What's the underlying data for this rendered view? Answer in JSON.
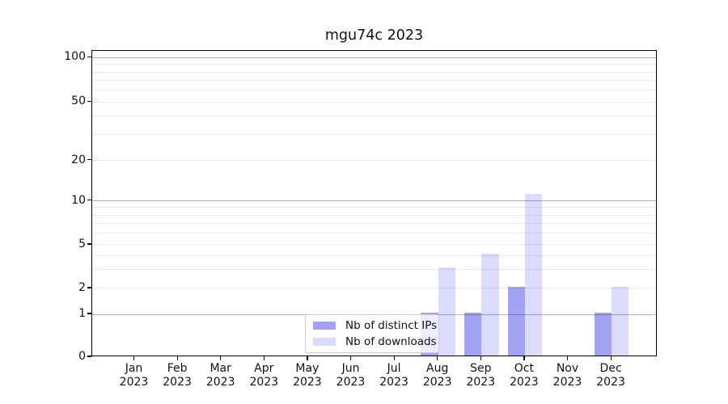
{
  "chart_data": {
    "type": "bar",
    "title": "mgu74c 2023",
    "categories": [
      "Jan 2023",
      "Feb 2023",
      "Mar 2023",
      "Apr 2023",
      "May 2023",
      "Jun 2023",
      "Jul 2023",
      "Aug 2023",
      "Sep 2023",
      "Oct 2023",
      "Nov 2023",
      "Dec 2023"
    ],
    "series": [
      {
        "name": "Nb of distinct IPs",
        "color": "#0000e1",
        "alpha": 0.36,
        "values": [
          0,
          0,
          0,
          0,
          0,
          0,
          0,
          1,
          1,
          2,
          0,
          1
        ]
      },
      {
        "name": "Nb of downloads",
        "color": "#0000e1",
        "alpha": 0.14,
        "values": [
          0,
          0,
          0,
          0,
          0,
          0,
          0,
          3,
          4,
          11,
          0,
          2
        ]
      }
    ],
    "yscale": "symlog",
    "ylim": [
      0,
      110
    ],
    "yticks_labeled": [
      0,
      1,
      2,
      5,
      10,
      20,
      50,
      100
    ],
    "grid_major_values": [
      1,
      10,
      100
    ],
    "grid_minor_values": [
      2,
      3,
      4,
      5,
      6,
      7,
      8,
      9,
      20,
      30,
      40,
      50,
      60,
      70,
      80,
      90
    ],
    "legend": {
      "position": "lower-center",
      "entries": [
        "Nb of distinct IPs",
        "Nb of downloads"
      ]
    },
    "colors": {
      "grid_major": "#b2b2b2",
      "grid_minor": "#e9e9e9",
      "spine": "#000000",
      "background": "#ffffff"
    }
  }
}
